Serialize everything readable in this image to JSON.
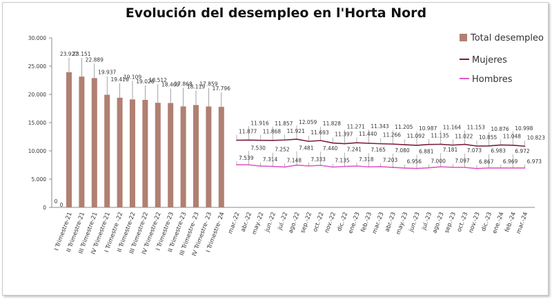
{
  "chart_data": {
    "type": "bar+line",
    "title": "Evolución del desempleo en l'Horta Nord",
    "ylim": [
      0,
      30000
    ],
    "yticks": [
      "0",
      "5.000",
      "10.000",
      "15.000",
      "20.000",
      "25.000",
      "30.000"
    ],
    "colors": {
      "total": "#b08072",
      "mujeres": "#7a1c3a",
      "hombres": "#e455c8"
    },
    "bar_series": {
      "name": "Total desempleo",
      "categories": [
        "I Trimestre-21",
        "II Trimestre-21",
        "III Trimestre-21",
        "IV Trimestre-21",
        "I Trimestre -22",
        "II Trimestre-22",
        "III Trimestre-22",
        "IV Trimestre-22",
        "I Trimestre-23",
        "II Trimestre-23",
        "III Trimestre- 23",
        "IV Trimestre- 23",
        "I Trimestre- 24"
      ],
      "values": [
        23927,
        23151,
        22889,
        19937,
        19416,
        19109,
        19026,
        18512,
        18469,
        17868,
        18119,
        17859,
        17796
      ],
      "labels": [
        "23.927",
        "23.151",
        "22.889",
        "19.937",
        "19.416",
        "19.109",
        "19.026",
        "18.512",
        "18.469",
        "17.868",
        "18.119",
        "17.859",
        "17.796"
      ]
    },
    "extra_zero_label": "0",
    "line_categories": [
      "mar.-22",
      "abr.-22",
      "may.-22",
      "jun.-22",
      "jul.-22",
      "ago.-22",
      "sep.-22",
      "oct.-22",
      "nov.-22",
      "dic.-22",
      "ene.-23",
      "feb.-23",
      "mar.-23",
      "abr.-23",
      "may.-23",
      "jun.-23",
      "jul.-23",
      "ago.-23",
      "sep.-23",
      "oct.-23",
      "nov.-23",
      "dic.-23",
      "ene.-24",
      "feb.-24",
      "mar.-24"
    ],
    "line_series": [
      {
        "name": "Mujeres",
        "values": [
          11877,
          11916,
          11868,
          11857,
          11921,
          12059,
          11693,
          11828,
          11397,
          11271,
          11440,
          11343,
          11266,
          11205,
          11092,
          10987,
          11135,
          11164,
          11022,
          11153,
          10855,
          10876,
          11048,
          10998,
          10823
        ],
        "labels": [
          "11.877",
          "11.916",
          "11.868",
          "11.857",
          "11.921",
          "12.059",
          "11.693",
          "11.828",
          "11.397",
          "11.271",
          "11.440",
          "11.343",
          "11.266",
          "11.205",
          "11.092",
          "10.987",
          "11.135",
          "11.164",
          "11.022",
          "11.153",
          "10.855",
          "10.876",
          "11.048",
          "10.998",
          "10.823"
        ]
      },
      {
        "name": "Hombres",
        "values": [
          7539,
          7530,
          7314,
          7252,
          7148,
          7481,
          7333,
          7440,
          7135,
          7241,
          7318,
          7165,
          7203,
          7080,
          6956,
          6881,
          7000,
          7181,
          7097,
          7073,
          6867,
          6983,
          6969,
          6972,
          6973
        ],
        "labels": [
          "7.539",
          "7.530",
          "7.314",
          "7.252",
          "7.148",
          "7.481",
          "7.333",
          "7.440",
          "7.135",
          "7.241",
          "7.318",
          "7.165",
          "7.203",
          "7.080",
          "6.956",
          "6.881",
          "7.000",
          "7.181",
          "7.097",
          "7.073",
          "6.867",
          "6.983",
          "6.969",
          "6.972",
          "6.973"
        ]
      }
    ]
  }
}
